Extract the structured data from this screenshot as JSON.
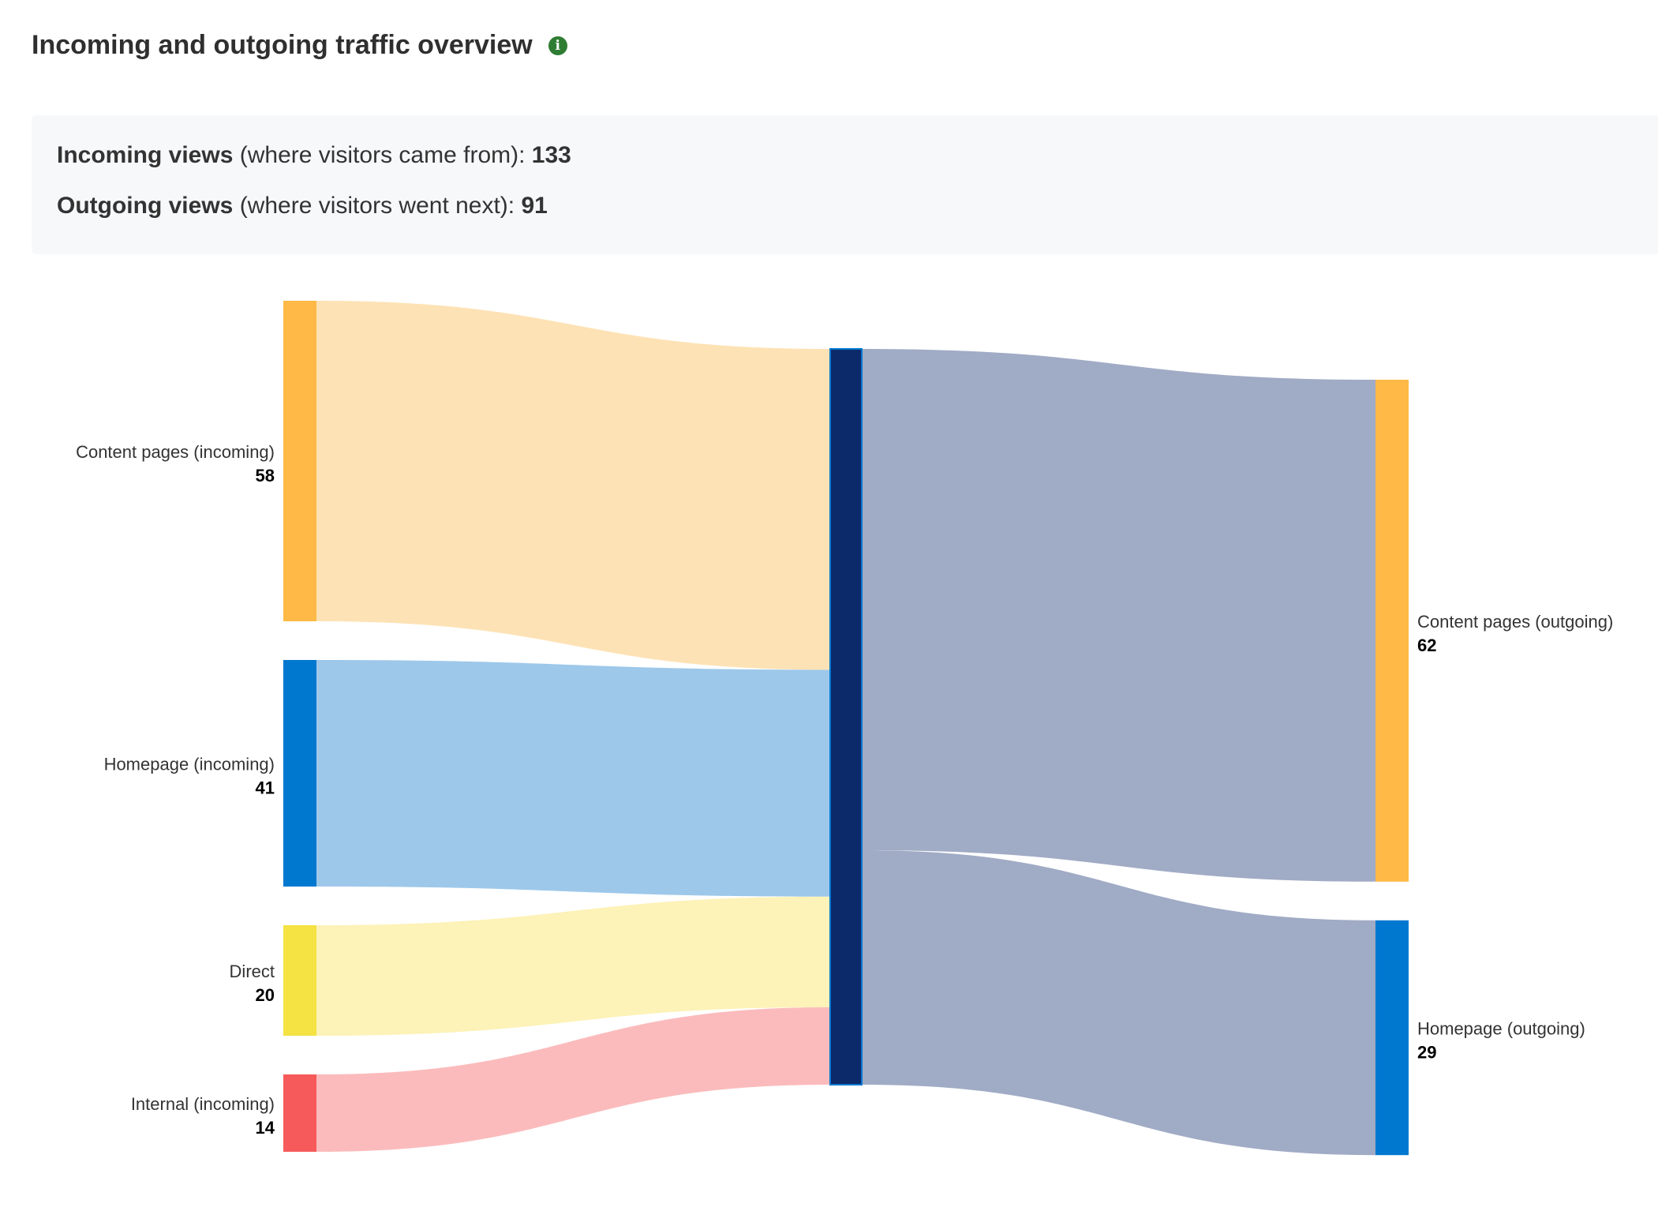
{
  "header": {
    "title": "Incoming and outgoing traffic overview",
    "info_icon": "info-icon"
  },
  "summary": {
    "incoming": {
      "label": "Incoming views",
      "detail": " (where visitors came from): ",
      "value": "133"
    },
    "outgoing": {
      "label": "Outgoing views",
      "detail": " (where visitors went next): ",
      "value": "91"
    }
  },
  "chart_data": {
    "type": "sankey",
    "incoming": [
      {
        "name": "Content pages (incoming)",
        "value": 58,
        "color": "#FFB946",
        "link_color": "#FDE2B5"
      },
      {
        "name": "Homepage (incoming)",
        "value": 41,
        "color": "#0078D0",
        "link_color": "#9DC8EA"
      },
      {
        "name": "Direct",
        "value": 20,
        "color": "#F5E243",
        "link_color": "#FDF2B8"
      },
      {
        "name": "Internal (incoming)",
        "value": 14,
        "color": "#F65A5A",
        "link_color": "#FBBBBC"
      }
    ],
    "center": {
      "color": "#0C2A6A",
      "border": "#0078D0"
    },
    "outgoing": [
      {
        "name": "Content pages (outgoing)",
        "value": 62,
        "color": "#FFB946",
        "link_color": "#A0ABC5"
      },
      {
        "name": "Homepage (outgoing)",
        "value": 29,
        "color": "#0078D0",
        "link_color": "#A0ABC5"
      }
    ]
  }
}
